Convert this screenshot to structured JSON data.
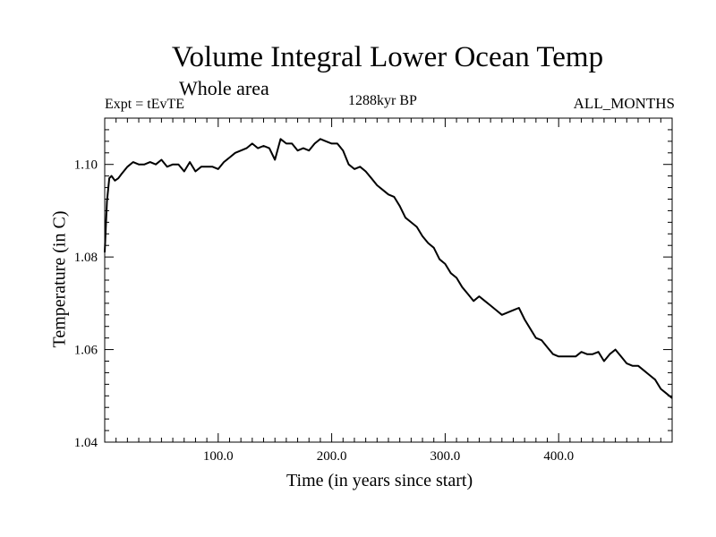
{
  "chart_data": {
    "type": "line",
    "title": "Volume Integral Lower Ocean Temp",
    "subtitle": "Whole area",
    "annotations": {
      "left": "Expt = tEvTE",
      "center": "1288kyr BP",
      "right": "ALL_MONTHS"
    },
    "xlabel": "Time (in years since start)",
    "ylabel": "Temperature (in C)",
    "xlim": [
      0,
      500
    ],
    "ylim": [
      1.04,
      1.11
    ],
    "xticks": [
      100,
      200,
      300,
      400
    ],
    "xtick_labels": [
      "100.0",
      "200.0",
      "300.0",
      "400.0"
    ],
    "yticks": [
      1.04,
      1.06,
      1.08,
      1.1
    ],
    "ytick_labels": [
      "1.04",
      "1.06",
      "1.08",
      "1.10"
    ],
    "series": [
      {
        "name": "Temperature",
        "x": [
          0,
          2,
          4,
          6,
          9,
          12,
          15,
          20,
          25,
          30,
          35,
          40,
          45,
          50,
          55,
          60,
          65,
          70,
          75,
          80,
          85,
          90,
          95,
          100,
          105,
          110,
          115,
          120,
          125,
          130,
          135,
          140,
          145,
          150,
          155,
          160,
          165,
          170,
          175,
          180,
          185,
          190,
          195,
          200,
          205,
          210,
          215,
          220,
          225,
          230,
          235,
          240,
          245,
          250,
          255,
          260,
          265,
          270,
          275,
          280,
          285,
          290,
          295,
          300,
          305,
          310,
          315,
          320,
          325,
          330,
          335,
          340,
          345,
          350,
          355,
          360,
          365,
          370,
          375,
          380,
          385,
          390,
          395,
          400,
          405,
          410,
          415,
          420,
          425,
          430,
          435,
          440,
          445,
          450,
          455,
          460,
          465,
          470,
          475,
          480,
          485,
          490,
          495,
          500
        ],
        "values": [
          1.081,
          1.092,
          1.097,
          1.0975,
          1.0965,
          1.097,
          1.098,
          1.0995,
          1.1005,
          1.1,
          1.1,
          1.1005,
          1.1,
          1.101,
          1.0995,
          1.1,
          1.1,
          1.0985,
          1.1005,
          1.0985,
          1.0995,
          1.0995,
          1.0995,
          1.099,
          1.1005,
          1.1015,
          1.1025,
          1.103,
          1.1035,
          1.1045,
          1.1035,
          1.104,
          1.1035,
          1.101,
          1.1055,
          1.1045,
          1.1045,
          1.103,
          1.1035,
          1.103,
          1.1045,
          1.1055,
          1.105,
          1.1045,
          1.1045,
          1.103,
          1.1,
          1.099,
          1.0995,
          1.0985,
          1.097,
          1.0955,
          1.0945,
          1.0935,
          1.093,
          1.091,
          1.0885,
          1.0875,
          1.0865,
          1.0845,
          1.083,
          1.082,
          1.0795,
          1.0785,
          1.0765,
          1.0755,
          1.0735,
          1.072,
          1.0705,
          1.0715,
          1.0705,
          1.0695,
          1.0685,
          1.0675,
          1.068,
          1.0685,
          1.069,
          1.0665,
          1.0645,
          1.0625,
          1.062,
          1.0605,
          1.059,
          1.0585,
          1.0585,
          1.0585,
          1.0585,
          1.0595,
          1.059,
          1.059,
          1.0595,
          1.0575,
          1.059,
          1.06,
          1.0585,
          1.057,
          1.0565,
          1.0565,
          1.0555,
          1.0545,
          1.0535,
          1.0515,
          1.0505,
          1.0495
        ]
      }
    ]
  }
}
